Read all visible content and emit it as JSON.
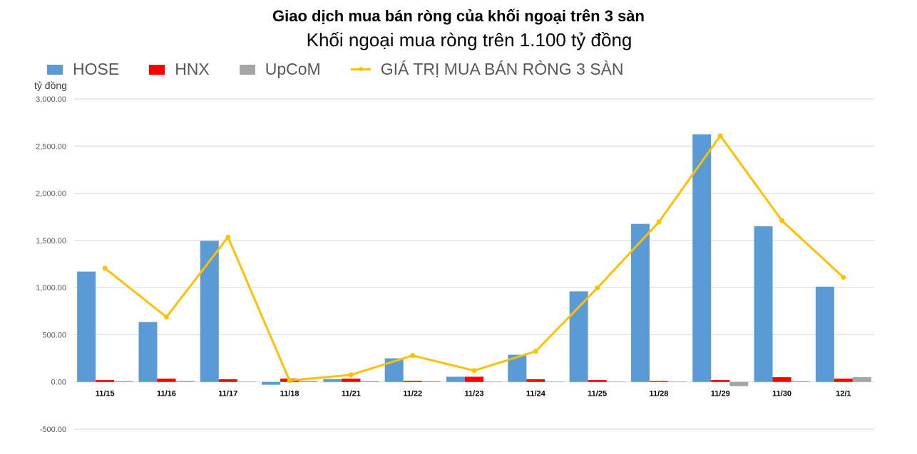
{
  "chart_data": {
    "type": "bar",
    "title": "Giao dịch mua bán ròng của khối ngoại trên 3 sàn",
    "subtitle": "Khối ngoại mua ròng trên 1.100 tỷ đồng",
    "ylabel": "tỷ đồng",
    "xlabel": "",
    "ylim": [
      -500,
      3000
    ],
    "yticks": [
      "-500.00",
      "0.00",
      "500.00",
      "1,000.00",
      "1,500.00",
      "2,000.00",
      "2,500.00",
      "3,000.00"
    ],
    "ytick_values": [
      -500,
      0,
      500,
      1000,
      1500,
      2000,
      2500,
      3000
    ],
    "grid": true,
    "legend_position": "top-left",
    "categories": [
      "11/15",
      "11/16",
      "11/17",
      "11/18",
      "11/21",
      "11/22",
      "11/23",
      "11/24",
      "11/25",
      "11/28",
      "11/29",
      "11/30",
      "12/1"
    ],
    "series": [
      {
        "name": "HOSE",
        "type": "bar",
        "color": "#5b9bd5",
        "values": [
          1170,
          635,
          1495,
          -30,
          30,
          250,
          55,
          288,
          960,
          1675,
          2625,
          1650,
          1010
        ]
      },
      {
        "name": "HNX",
        "type": "bar",
        "color": "#ff0000",
        "values": [
          20,
          35,
          28,
          35,
          35,
          12,
          55,
          28,
          20,
          10,
          20,
          50,
          35
        ]
      },
      {
        "name": "UpCoM",
        "type": "bar",
        "color": "#a5a5a5",
        "values": [
          10,
          12,
          5,
          12,
          10,
          10,
          5,
          5,
          5,
          5,
          -45,
          10,
          50
        ]
      },
      {
        "name": "GIÁ TRỊ MUA BÁN RÒNG 3 SÀN",
        "type": "line",
        "color": "#ffc000",
        "values": [
          1205,
          688,
          1535,
          15,
          75,
          280,
          120,
          325,
          995,
          1695,
          2610,
          1710,
          1108
        ]
      }
    ]
  }
}
